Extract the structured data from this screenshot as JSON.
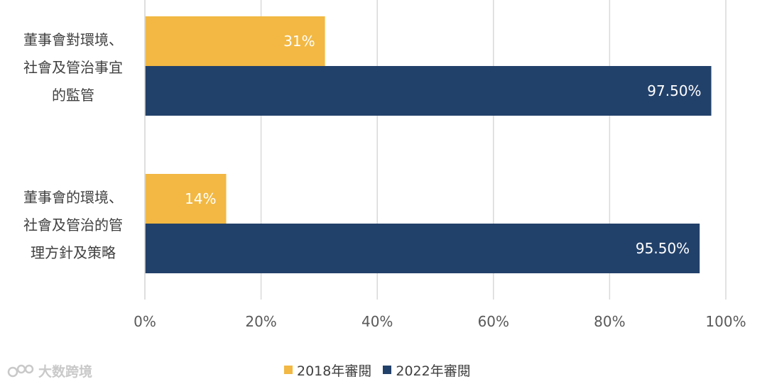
{
  "chart_data": {
    "type": "bar",
    "orientation": "horizontal",
    "categories": [
      [
        "董事會對環境、",
        "社會及管治事宜",
        "的監管"
      ],
      [
        "董事會的環境、",
        "社會及管治的管",
        "理方針及策略"
      ]
    ],
    "series": [
      {
        "name": "2018年審閱",
        "color": "#F2B843",
        "values": [
          31,
          14
        ],
        "labels": [
          "31%",
          "14%"
        ]
      },
      {
        "name": "2022年審閱",
        "color": "#22416A",
        "values": [
          97.5,
          95.5
        ],
        "labels": [
          "97.50%",
          "95.50%"
        ]
      }
    ],
    "xlim": [
      0,
      100
    ],
    "xticks": [
      0,
      20,
      40,
      60,
      80,
      100
    ],
    "xtick_labels": [
      "0%",
      "20%",
      "40%",
      "60%",
      "80%",
      "100%"
    ],
    "grid": true,
    "legend": "bottom"
  },
  "watermark": {
    "text": "大数跨境"
  }
}
